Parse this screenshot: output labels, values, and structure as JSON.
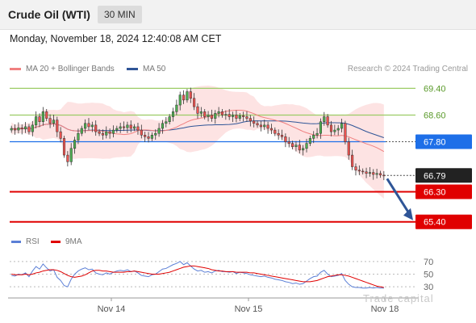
{
  "header": {
    "title": "Crude Oil (WTI)",
    "interval": "30 MIN"
  },
  "timestamp": "Monday, November 18, 2024 12:40:08 AM CET",
  "legend": {
    "ma20_label": "MA 20 + Bollinger Bands",
    "ma50_label": "MA 50",
    "credit": "Research © 2024 Trading Central",
    "ma20_color": "#f08080",
    "ma50_color": "#2f5597"
  },
  "rsi_legend": {
    "rsi_label": "RSI",
    "ma9_label": "9MA",
    "rsi_color": "#5b7fd6",
    "ma9_color": "#e00000"
  },
  "watermark": "Trade capital",
  "chart_data": {
    "type": "candlestick",
    "price_range": [
      65.2,
      69.7
    ],
    "x_ticks": [
      "Nov 14",
      "Nov 15",
      "Nov 18"
    ],
    "levels": [
      {
        "value": 69.4,
        "label": "69.40",
        "kind": "resistance",
        "color": "#9ccc65"
      },
      {
        "value": 68.6,
        "label": "68.60",
        "kind": "resistance",
        "color": "#9ccc65"
      },
      {
        "value": 67.8,
        "label": "67.80",
        "kind": "pivot",
        "color": "#1e6fe8"
      },
      {
        "value": 66.79,
        "label": "66.79",
        "kind": "last",
        "color": "#222222"
      },
      {
        "value": 66.3,
        "label": "66.30",
        "kind": "support",
        "color": "#e00000"
      },
      {
        "value": 65.4,
        "label": "65.40",
        "kind": "support",
        "color": "#e00000"
      }
    ],
    "close": [
      68.2,
      68.15,
      68.22,
      68.18,
      68.25,
      68.1,
      68.3,
      68.55,
      68.4,
      68.7,
      68.5,
      68.35,
      68.45,
      68.1,
      67.9,
      67.4,
      67.2,
      67.6,
      67.85,
      68.05,
      68.2,
      68.35,
      68.25,
      68.3,
      68.1,
      68.05,
      68.0,
      68.1,
      68.05,
      68.15,
      68.2,
      68.25,
      68.22,
      68.3,
      68.2,
      68.25,
      68.15,
      68.0,
      67.95,
      67.9,
      68.0,
      68.05,
      68.2,
      68.35,
      68.4,
      68.55,
      68.7,
      68.9,
      69.2,
      69.05,
      69.3,
      69.1,
      68.85,
      68.65,
      68.7,
      68.55,
      68.6,
      68.5,
      68.65,
      68.7,
      68.6,
      68.62,
      68.55,
      68.6,
      68.5,
      68.58,
      68.55,
      68.5,
      68.42,
      68.35,
      68.3,
      68.25,
      68.3,
      68.2,
      68.15,
      68.05,
      68.0,
      67.95,
      67.8,
      67.75,
      67.65,
      67.7,
      67.55,
      67.6,
      67.75,
      67.9,
      68.0,
      68.05,
      68.4,
      68.55,
      68.3,
      68.1,
      68.15,
      68.2,
      68.35,
      67.8,
      67.4,
      67.05,
      66.95,
      66.92,
      66.9,
      66.85,
      66.88,
      66.82,
      66.85,
      66.8,
      66.79
    ],
    "rsi_range": [
      20,
      80
    ],
    "rsi_levels": [
      70,
      50,
      30
    ],
    "rsi": [
      48,
      47,
      50,
      49,
      52,
      46,
      55,
      62,
      58,
      66,
      60,
      55,
      57,
      45,
      40,
      32,
      30,
      42,
      50,
      55,
      58,
      60,
      57,
      58,
      52,
      50,
      49,
      52,
      50,
      53,
      55,
      56,
      55,
      57,
      54,
      55,
      52,
      48,
      47,
      46,
      49,
      50,
      54,
      58,
      59,
      62,
      65,
      67,
      70,
      65,
      68,
      63,
      58,
      55,
      56,
      53,
      54,
      52,
      55,
      56,
      54,
      54,
      53,
      54,
      51,
      53,
      52,
      51,
      49,
      48,
      47,
      46,
      47,
      45,
      44,
      42,
      41,
      40,
      38,
      37,
      35,
      36,
      34,
      35,
      39,
      43,
      46,
      47,
      53,
      56,
      50,
      46,
      47,
      48,
      51,
      40,
      34,
      30,
      29,
      29,
      28,
      28,
      29,
      28,
      29,
      28,
      28
    ],
    "rsi_ma9": [
      50,
      49,
      49,
      49,
      50,
      49,
      50,
      52,
      53,
      55,
      56,
      57,
      57,
      56,
      54,
      51,
      48,
      46,
      45,
      46,
      47,
      49,
      52,
      55,
      56,
      56,
      55,
      55,
      54,
      53,
      53,
      53,
      53,
      54,
      54,
      55,
      54,
      53,
      52,
      51,
      50,
      50,
      50,
      51,
      52,
      53,
      55,
      57,
      59,
      61,
      62,
      63,
      63,
      62,
      61,
      60,
      59,
      57,
      56,
      55,
      55,
      54,
      54,
      54,
      53,
      53,
      53,
      53,
      52,
      52,
      51,
      50,
      49,
      48,
      47,
      46,
      45,
      44,
      43,
      42,
      41,
      40,
      39,
      38,
      38,
      38,
      39,
      40,
      42,
      44,
      46,
      47,
      48,
      49,
      49,
      48,
      47,
      45,
      43,
      41,
      39,
      37,
      35,
      33,
      31,
      30,
      29
    ],
    "annotations": [
      {
        "type": "arrow",
        "direction": "down",
        "from_value": 66.79,
        "to_value": 65.4
      }
    ]
  }
}
